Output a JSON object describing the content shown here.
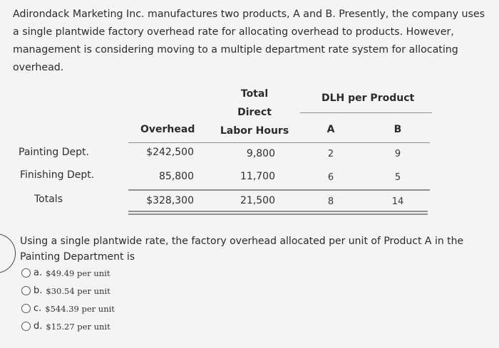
{
  "intro": "Adirondack Marketing Inc. manufactures two products, A and B. Presently, the company uses a single plantwide factory overhead rate for allocating overhead to products. However, management is considering moving to a multiple department rate system for allocating overhead.",
  "table": {
    "headers": {
      "overhead": "Overhead",
      "total_line1": "Total",
      "total_line2": "Direct",
      "total_line3": "Labor Hours",
      "dlh_group": "DLH per Product",
      "col_a": "A",
      "col_b": "B"
    },
    "rows": [
      {
        "label": "Painting Dept.",
        "overhead": "$242,500",
        "hours": "9,800",
        "a": "2",
        "b": "9"
      },
      {
        "label": "Finishing Dept.",
        "overhead": "85,800",
        "hours": "11,700",
        "a": "6",
        "b": "5"
      },
      {
        "label": "Totals",
        "overhead": "$328,300",
        "hours": "21,500",
        "a": "8",
        "b": "14"
      }
    ]
  },
  "question": "Using a single plantwide rate, the factory overhead allocated per unit of Product A in the Painting Department is",
  "options": [
    {
      "letter": "a.",
      "text": "$49.49 per unit"
    },
    {
      "letter": "b.",
      "text": "$30.54 per unit"
    },
    {
      "letter": "c.",
      "text": "$544.39 per unit"
    },
    {
      "letter": "d.",
      "text": "$15.27 per unit"
    }
  ]
}
